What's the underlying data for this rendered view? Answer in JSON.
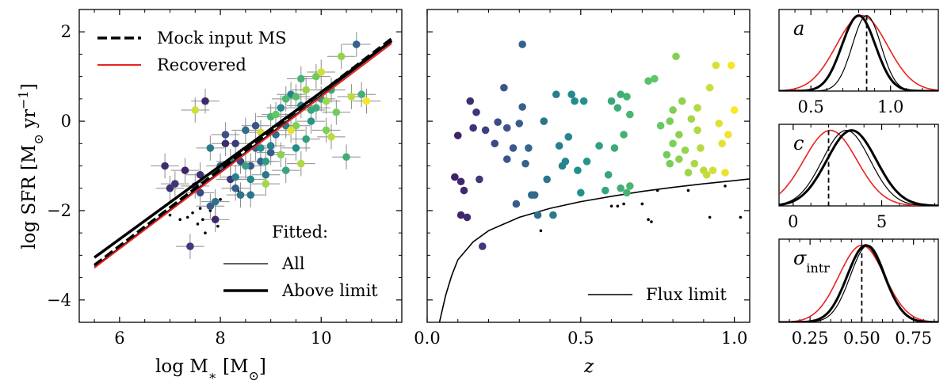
{
  "chart_data": [
    {
      "type": "scatter",
      "xlabel": "log M∗ [M⊙]",
      "ylabel": "log SFR [M⊙ yr−1]",
      "xlim": [
        5.2,
        11.6
      ],
      "ylim": [
        -4.5,
        2.5
      ],
      "xticks": [
        6,
        8,
        10
      ],
      "yticks": [
        -4,
        -2,
        0,
        2
      ],
      "lines": [
        {
          "name": "Mock input MS",
          "style": "dashed",
          "color": "#000000",
          "x": [
            5.5,
            11.4
          ],
          "y": [
            -3.22,
            1.85
          ]
        },
        {
          "name": "Recovered",
          "style": "solid",
          "color": "#e8231f",
          "x": [
            5.5,
            11.4
          ],
          "y": [
            -3.28,
            1.74
          ]
        },
        {
          "name": "All",
          "style": "thin",
          "color": "#000000",
          "x": [
            5.5,
            11.4
          ],
          "y": [
            -3.25,
            1.78
          ]
        },
        {
          "name": "Above limit",
          "style": "thick",
          "color": "#000000",
          "x": [
            5.5,
            11.4
          ],
          "y": [
            -3.05,
            1.8
          ]
        }
      ],
      "legend_main": {
        "placement": "upper-left",
        "entries": [
          "Mock input MS",
          "Recovered"
        ]
      },
      "legend_fitted": {
        "title": "Fitted:",
        "placement": "lower-right",
        "entries": [
          "All",
          "Above limit"
        ]
      },
      "points": [
        {
          "x": 7.4,
          "y": -2.8,
          "z": 0.18
        },
        {
          "x": 7.0,
          "y": -1.5,
          "z": 0.14
        },
        {
          "x": 7.3,
          "y": -1.1,
          "z": 0.1
        },
        {
          "x": 7.7,
          "y": 0.45,
          "z": 0.12
        },
        {
          "x": 7.5,
          "y": -1.45,
          "z": 0.11
        },
        {
          "x": 8.1,
          "y": -0.5,
          "z": 0.13
        },
        {
          "x": 7.9,
          "y": -2.2,
          "z": 0.12
        },
        {
          "x": 8.2,
          "y": -1.3,
          "z": 0.16
        },
        {
          "x": 7.1,
          "y": -1.4,
          "z": 0.16
        },
        {
          "x": 8.4,
          "y": -0.9,
          "z": 0.2
        },
        {
          "x": 7.6,
          "y": -1.2,
          "z": 0.14
        },
        {
          "x": 6.9,
          "y": -1.0,
          "z": 0.13
        },
        {
          "x": 8.6,
          "y": -1.0,
          "z": 0.27
        },
        {
          "x": 8.3,
          "y": -1.5,
          "z": 0.3
        },
        {
          "x": 7.8,
          "y": -1.9,
          "z": 0.29
        },
        {
          "x": 8.0,
          "y": -1.0,
          "z": 0.31
        },
        {
          "x": 8.7,
          "y": -0.6,
          "z": 0.34
        },
        {
          "x": 8.5,
          "y": -0.2,
          "z": 0.36
        },
        {
          "x": 8.2,
          "y": -0.9,
          "z": 0.37
        },
        {
          "x": 8.8,
          "y": -0.9,
          "z": 0.32
        },
        {
          "x": 9.0,
          "y": -0.7,
          "z": 0.3
        },
        {
          "x": 7.9,
          "y": -1.8,
          "z": 0.38
        },
        {
          "x": 8.4,
          "y": -1.65,
          "z": 0.38
        },
        {
          "x": 9.1,
          "y": -0.3,
          "z": 0.36
        },
        {
          "x": 8.6,
          "y": -1.65,
          "z": 0.39
        },
        {
          "x": 8.9,
          "y": -1.2,
          "z": 0.4
        },
        {
          "x": 9.3,
          "y": -0.1,
          "z": 0.42
        },
        {
          "x": 9.0,
          "y": -0.55,
          "z": 0.43
        },
        {
          "x": 8.3,
          "y": -1.25,
          "z": 0.44
        },
        {
          "x": 9.4,
          "y": 0.6,
          "z": 0.44
        },
        {
          "x": 9.2,
          "y": 0.3,
          "z": 0.46
        },
        {
          "x": 9.6,
          "y": 0.35,
          "z": 0.48
        },
        {
          "x": 8.8,
          "y": -0.6,
          "z": 0.5
        },
        {
          "x": 10.7,
          "y": 1.72,
          "z": 0.31
        },
        {
          "x": 9.5,
          "y": -0.6,
          "z": 0.49
        },
        {
          "x": 9.8,
          "y": 0.0,
          "z": 0.52
        },
        {
          "x": 10.0,
          "y": 0.5,
          "z": 0.54
        },
        {
          "x": 9.7,
          "y": -0.4,
          "z": 0.57
        },
        {
          "x": 8.5,
          "y": -1.0,
          "z": 0.58
        },
        {
          "x": 9.3,
          "y": -1.1,
          "z": 0.59
        },
        {
          "x": 9.9,
          "y": 0.3,
          "z": 0.61
        },
        {
          "x": 10.2,
          "y": 0.7,
          "z": 0.62
        },
        {
          "x": 10.5,
          "y": -0.8,
          "z": 0.63
        },
        {
          "x": 9.6,
          "y": 0.95,
          "z": 0.65
        },
        {
          "x": 10.8,
          "y": 0.6,
          "z": 0.64
        },
        {
          "x": 9.0,
          "y": 0.1,
          "z": 0.66
        },
        {
          "x": 9.8,
          "y": 0.25,
          "z": 0.6
        },
        {
          "x": 10.3,
          "y": 0.2,
          "z": 0.78
        },
        {
          "x": 9.5,
          "y": -0.1,
          "z": 0.8
        },
        {
          "x": 9.9,
          "y": 1.0,
          "z": 0.77
        },
        {
          "x": 10.4,
          "y": 1.45,
          "z": 0.83
        },
        {
          "x": 10.1,
          "y": 0.45,
          "z": 0.85
        },
        {
          "x": 9.2,
          "y": -0.75,
          "z": 0.82
        },
        {
          "x": 9.6,
          "y": -0.95,
          "z": 0.88
        },
        {
          "x": 10.6,
          "y": 0.55,
          "z": 0.9
        },
        {
          "x": 10.0,
          "y": 1.1,
          "z": 0.93
        },
        {
          "x": 8.9,
          "y": -1.4,
          "z": 0.86
        },
        {
          "x": 9.4,
          "y": -0.2,
          "z": 0.96
        },
        {
          "x": 10.9,
          "y": 0.45,
          "z": 0.99
        },
        {
          "x": 8.8,
          "y": -0.25,
          "z": 0.92
        },
        {
          "x": 9.7,
          "y": 0.7,
          "z": 0.84
        },
        {
          "x": 10.2,
          "y": -0.35,
          "z": 0.9
        },
        {
          "x": 7.5,
          "y": 0.25,
          "z": 0.93
        },
        {
          "x": 9.1,
          "y": 0.15,
          "z": 0.75
        },
        {
          "x": 8.3,
          "y": -0.5,
          "z": 0.18
        },
        {
          "x": 7.6,
          "y": -1.6,
          "z": 0.22
        },
        {
          "x": 8.7,
          "y": -0.1,
          "z": 0.26
        },
        {
          "x": 9.5,
          "y": 0.55,
          "z": 0.7
        },
        {
          "x": 8.9,
          "y": -0.9,
          "z": 0.55
        },
        {
          "x": 8.1,
          "y": -0.3,
          "z": 0.24
        },
        {
          "x": 7.8,
          "y": -0.6,
          "z": 0.41
        },
        {
          "x": 9.3,
          "y": 0.5,
          "z": 0.68
        },
        {
          "x": 10.1,
          "y": -0.2,
          "z": 0.8
        },
        {
          "x": 8.6,
          "y": -1.3,
          "z": 0.47
        }
      ],
      "below_limit_points": [
        {
          "x": 7.0,
          "y": -2.1
        },
        {
          "x": 7.2,
          "y": -2.2
        },
        {
          "x": 7.35,
          "y": -2.15
        },
        {
          "x": 7.55,
          "y": -2.3
        },
        {
          "x": 7.6,
          "y": -1.95
        },
        {
          "x": 7.8,
          "y": -2.0
        },
        {
          "x": 8.0,
          "y": -1.75
        },
        {
          "x": 8.25,
          "y": -1.5
        },
        {
          "x": 7.1,
          "y": -1.9
        },
        {
          "x": 7.45,
          "y": -2.05
        },
        {
          "x": 7.95,
          "y": -2.35
        },
        {
          "x": 8.35,
          "y": -1.55
        },
        {
          "x": 7.7,
          "y": -2.5
        },
        {
          "x": 7.65,
          "y": -2.2
        }
      ],
      "colormap": "viridis (color = z)"
    },
    {
      "type": "scatter",
      "xlabel": "z",
      "xlim": [
        0.0,
        1.05
      ],
      "ylim": [
        -4.5,
        2.5
      ],
      "xticks": [
        0.0,
        0.5,
        1.0
      ],
      "yticks": [
        -4,
        -2,
        0,
        2
      ],
      "curve": {
        "name": "Flux limit",
        "x": [
          0.04,
          0.06,
          0.08,
          0.1,
          0.15,
          0.2,
          0.3,
          0.4,
          0.5,
          0.6,
          0.7,
          0.8,
          0.9,
          1.0,
          1.05
        ],
        "y": [
          -4.5,
          -3.9,
          -3.45,
          -3.1,
          -2.7,
          -2.45,
          -2.15,
          -1.95,
          -1.8,
          -1.68,
          -1.57,
          -1.48,
          -1.4,
          -1.33,
          -1.29
        ]
      },
      "legend": {
        "placement": "lower-right",
        "entries": [
          "Flux limit"
        ]
      },
      "points": [
        {
          "x": 0.09,
          "y": -1.25
        },
        {
          "x": 0.1,
          "y": -0.32
        },
        {
          "x": 0.11,
          "y": -1.35
        },
        {
          "x": 0.12,
          "y": -1.55
        },
        {
          "x": 0.13,
          "y": -2.15
        },
        {
          "x": 0.11,
          "y": -2.1
        },
        {
          "x": 0.14,
          "y": 0.45
        },
        {
          "x": 0.15,
          "y": -0.15
        },
        {
          "x": 0.16,
          "y": 0.2
        },
        {
          "x": 0.17,
          "y": -1.3
        },
        {
          "x": 0.18,
          "y": -2.8
        },
        {
          "x": 0.19,
          "y": -0.2
        },
        {
          "x": 0.22,
          "y": -0.5
        },
        {
          "x": 0.23,
          "y": -0.02
        },
        {
          "x": 0.25,
          "y": 0.75
        },
        {
          "x": 0.26,
          "y": -0.15
        },
        {
          "x": 0.26,
          "y": -0.85
        },
        {
          "x": 0.28,
          "y": -0.6
        },
        {
          "x": 0.29,
          "y": -1.85
        },
        {
          "x": 0.3,
          "y": -0.05
        },
        {
          "x": 0.31,
          "y": 1.72
        },
        {
          "x": 0.31,
          "y": 0.32
        },
        {
          "x": 0.32,
          "y": -0.95
        },
        {
          "x": 0.33,
          "y": -0.6
        },
        {
          "x": 0.34,
          "y": -1.65
        },
        {
          "x": 0.35,
          "y": -1.65
        },
        {
          "x": 0.36,
          "y": -2.1
        },
        {
          "x": 0.38,
          "y": 0.0
        },
        {
          "x": 0.39,
          "y": -1.3
        },
        {
          "x": 0.41,
          "y": -2.1
        },
        {
          "x": 0.42,
          "y": 0.6
        },
        {
          "x": 0.43,
          "y": -0.55
        },
        {
          "x": 0.44,
          "y": -1.0
        },
        {
          "x": 0.45,
          "y": -0.9
        },
        {
          "x": 0.46,
          "y": -0.35
        },
        {
          "x": 0.47,
          "y": 0.6
        },
        {
          "x": 0.48,
          "y": 0.45
        },
        {
          "x": 0.49,
          "y": -1.1
        },
        {
          "x": 0.5,
          "y": -1.6
        },
        {
          "x": 0.51,
          "y": 0.45
        },
        {
          "x": 0.52,
          "y": -0.9
        },
        {
          "x": 0.56,
          "y": -0.55
        },
        {
          "x": 0.58,
          "y": -1.55
        },
        {
          "x": 0.59,
          "y": -1.2
        },
        {
          "x": 0.6,
          "y": 0.45
        },
        {
          "x": 0.61,
          "y": -0.6
        },
        {
          "x": 0.62,
          "y": 0.3
        },
        {
          "x": 0.63,
          "y": 0.6
        },
        {
          "x": 0.64,
          "y": -0.3
        },
        {
          "x": 0.65,
          "y": 0.55
        },
        {
          "x": 0.66,
          "y": 0.15
        },
        {
          "x": 0.63,
          "y": -1.5
        },
        {
          "x": 0.65,
          "y": -1.6
        },
        {
          "x": 0.66,
          "y": -1.45
        },
        {
          "x": 0.72,
          "y": 0.9
        },
        {
          "x": 0.74,
          "y": 0.95
        },
        {
          "x": 0.76,
          "y": -0.1
        },
        {
          "x": 0.78,
          "y": -0.75
        },
        {
          "x": 0.79,
          "y": -0.95
        },
        {
          "x": 0.8,
          "y": 0.25
        },
        {
          "x": 0.8,
          "y": -0.5
        },
        {
          "x": 0.81,
          "y": 1.45
        },
        {
          "x": 0.82,
          "y": -0.3
        },
        {
          "x": 0.83,
          "y": 0.45
        },
        {
          "x": 0.84,
          "y": -0.65
        },
        {
          "x": 0.85,
          "y": -1.15
        },
        {
          "x": 0.86,
          "y": 0.05
        },
        {
          "x": 0.87,
          "y": -0.95
        },
        {
          "x": 0.88,
          "y": 0.3
        },
        {
          "x": 0.89,
          "y": -0.6
        },
        {
          "x": 0.9,
          "y": -1.1
        },
        {
          "x": 0.91,
          "y": -1.2
        },
        {
          "x": 0.92,
          "y": 0.75
        },
        {
          "x": 0.94,
          "y": 1.25
        },
        {
          "x": 0.95,
          "y": -0.05
        },
        {
          "x": 0.96,
          "y": -0.5
        },
        {
          "x": 0.97,
          "y": -1.15
        },
        {
          "x": 0.98,
          "y": -0.3
        },
        {
          "x": 0.99,
          "y": 1.25
        },
        {
          "x": 1.0,
          "y": 0.25
        },
        {
          "x": 0.79,
          "y": 0.0
        },
        {
          "x": 0.88,
          "y": -0.2
        },
        {
          "x": 0.82,
          "y": -0.85
        },
        {
          "x": 0.93,
          "y": -1.1
        }
      ],
      "below_limit_points": [
        {
          "x": 0.37,
          "y": -2.45
        },
        {
          "x": 0.6,
          "y": -1.9
        },
        {
          "x": 0.62,
          "y": -1.9
        },
        {
          "x": 0.64,
          "y": -1.85
        },
        {
          "x": 0.7,
          "y": -1.85
        },
        {
          "x": 0.72,
          "y": -2.2
        },
        {
          "x": 0.73,
          "y": -2.25
        },
        {
          "x": 0.75,
          "y": -1.55
        },
        {
          "x": 0.85,
          "y": -1.55
        },
        {
          "x": 0.92,
          "y": -2.15
        },
        {
          "x": 0.97,
          "y": -1.45
        },
        {
          "x": 1.02,
          "y": -2.15
        }
      ],
      "colormap": "viridis (color = z)"
    },
    {
      "type": "line",
      "label": "a",
      "xlim": [
        0.3,
        1.3
      ],
      "xticks": [
        0.5,
        1.0
      ],
      "ymax": 1.08,
      "vline": 0.85,
      "series": [
        {
          "style": "thin",
          "color": "#000000",
          "mu": 0.85,
          "sigma": 0.09
        },
        {
          "style": "thick",
          "color": "#000000",
          "mu": 0.8,
          "sigma": 0.105
        },
        {
          "style": "red",
          "color": "#e8231f",
          "mu": 0.82,
          "sigma": 0.16
        }
      ]
    },
    {
      "type": "line",
      "label": "c",
      "xlim": [
        -0.8,
        8.2
      ],
      "xticks": [
        0,
        5
      ],
      "ymax": 1.08,
      "vline": 2.0,
      "series": [
        {
          "style": "thin",
          "color": "#000000",
          "mu": 3.0,
          "sigma": 1.35
        },
        {
          "style": "thick",
          "color": "#000000",
          "mu": 3.3,
          "sigma": 1.4
        },
        {
          "style": "red",
          "color": "#e8231f",
          "mu": 2.1,
          "sigma": 1.5
        }
      ]
    },
    {
      "type": "line",
      "label": "σintr",
      "label_main": "σ",
      "label_sub": "intr",
      "xlim": [
        0.1,
        0.87
      ],
      "xticks": [
        0.25,
        0.5,
        0.75
      ],
      "ymax": 1.08,
      "vline": 0.5,
      "series": [
        {
          "style": "thin",
          "color": "#000000",
          "mu": 0.53,
          "sigma": 0.085
        },
        {
          "style": "thick",
          "color": "#000000",
          "mu": 0.52,
          "sigma": 0.09
        },
        {
          "style": "red",
          "color": "#e8231f",
          "mu": 0.5,
          "sigma": 0.11
        }
      ]
    }
  ],
  "left_text": {
    "xlabel_main": "log M",
    "xlabel_sub": "∗",
    "xlabel_unit": " [M",
    "xlabel_sun": "⊙",
    "xlabel_close": "]",
    "ylabel_main": "log SFR [M",
    "ylabel_sun": "⊙",
    "ylabel_unit": " yr",
    "ylabel_sup": "−1",
    "ylabel_close": "]",
    "legend_mock": "Mock input MS",
    "legend_recovered": "Recovered",
    "fitted_title": "Fitted:",
    "fitted_all": "All",
    "fitted_above": "Above limit"
  },
  "mid_text": {
    "xlabel": "z",
    "legend_flux": "Flux limit"
  }
}
